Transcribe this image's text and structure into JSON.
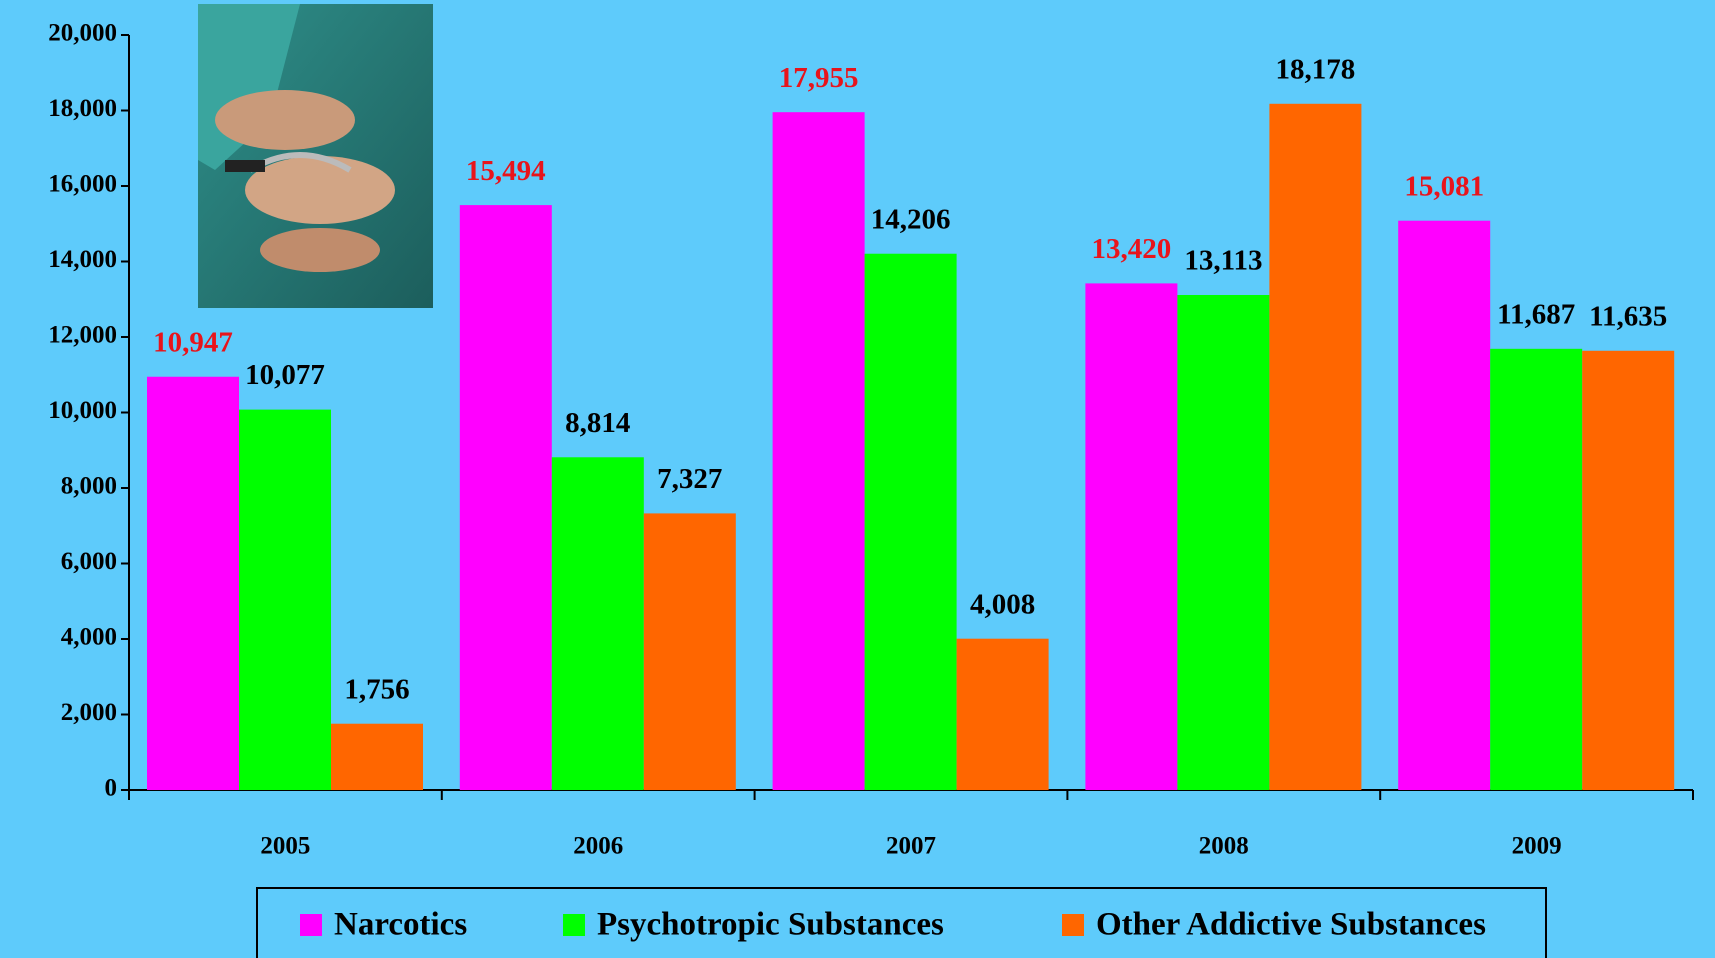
{
  "chart_data": {
    "type": "bar",
    "categories": [
      "2005",
      "2006",
      "2007",
      "2008",
      "2009"
    ],
    "series": [
      {
        "name": "Narcotics",
        "color": "#ff00ff",
        "label_color": "#e8141b",
        "values": [
          10947,
          15494,
          17955,
          13420,
          15081
        ],
        "value_labels": [
          "10,947",
          "15,494",
          "17,955",
          "13,420",
          "15,081"
        ]
      },
      {
        "name": "Psychotropic Substances",
        "color": "#00ff00",
        "label_color": "#000000",
        "values": [
          10077,
          8814,
          14206,
          13113,
          11687
        ],
        "value_labels": [
          "10,077",
          "8,814",
          "14,206",
          "13,113",
          "11,687"
        ]
      },
      {
        "name": "Other Addictive Substances",
        "color": "#ff6600",
        "label_color": "#000000",
        "values": [
          1756,
          7327,
          4008,
          18178,
          11635
        ],
        "value_labels": [
          "1,756",
          "7,327",
          "4,008",
          "18,178",
          "11,635"
        ]
      }
    ],
    "ylim": [
      0,
      20000
    ],
    "yticks": [
      0,
      {
        "value": 2000,
        "label": "2,000"
      },
      {
        "value": 4000,
        "label": "4,000"
      },
      {
        "value": 6000,
        "label": "6,000"
      },
      {
        "value": 8000,
        "label": "8,000"
      },
      {
        "value": 10000,
        "label": "10,000"
      },
      {
        "value": 12000,
        "label": "12,000"
      },
      {
        "value": 14000,
        "label": "14,000"
      },
      {
        "value": 16000,
        "label": "16,000"
      },
      {
        "value": 18000,
        "label": "18,000"
      },
      {
        "value": 20000,
        "label": "20,000"
      }
    ],
    "grid": false,
    "legend": "bottom"
  }
}
